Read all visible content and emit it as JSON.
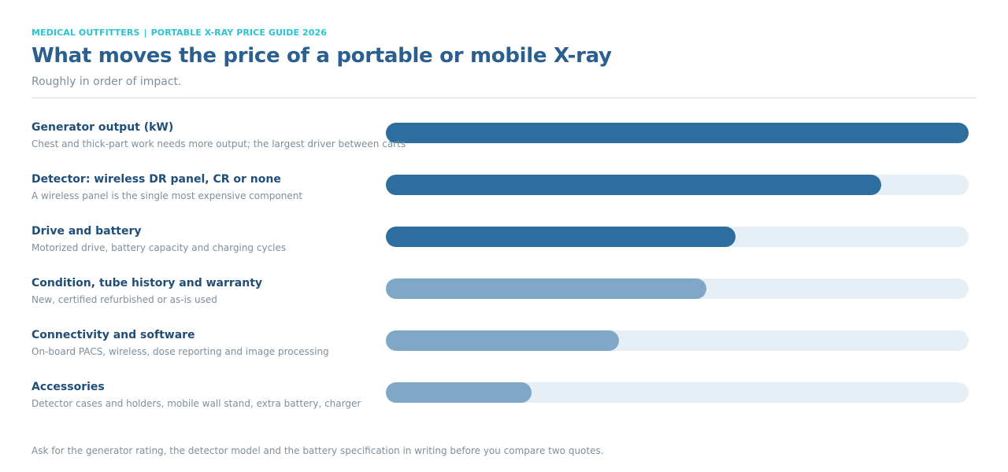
{
  "header": {
    "brand": "MEDICAL OUTFITTERS",
    "separator": "|",
    "guide": "PORTABLE X-RAY PRICE GUIDE 2026",
    "title": "What moves the price of a portable or mobile X-ray",
    "subtitle": "Roughly in order of impact."
  },
  "colors": {
    "accent": "#29c3d3",
    "title": "#2a5f8f",
    "primary_fill": "#2e6e9e",
    "secondary_fill": "#7fa8c7",
    "track": "#e6eef6"
  },
  "chart_data": {
    "type": "bar",
    "orientation": "horizontal",
    "xlim": [
      0,
      100
    ],
    "categories": [
      "Generator output (kW)",
      "Detector: wireless DR panel, CR or none",
      "Drive and battery",
      "Condition, tube history and warranty",
      "Connectivity and software",
      "Accessories"
    ],
    "descriptions": [
      "Chest and thick-part work needs more output; the largest driver between carts",
      "A wireless panel is the single most expensive component",
      "Motorized drive, battery capacity and charging cycles",
      "New, certified refurbished or as-is used",
      "On-board PACS, wireless, dose reporting and image processing",
      "Detector cases and holders, mobile wall stand, extra battery, charger"
    ],
    "values": [
      100,
      85,
      60,
      55,
      40,
      25
    ],
    "emphasis": [
      "primary",
      "primary",
      "primary",
      "secondary",
      "secondary",
      "secondary"
    ]
  },
  "footnote": "Ask for the generator rating, the detector model and the battery specification in writing before you compare two quotes."
}
